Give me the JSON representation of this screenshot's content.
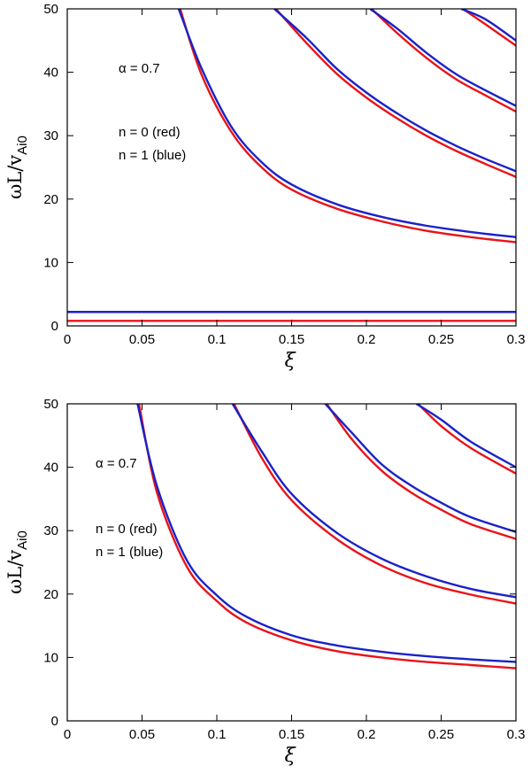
{
  "chart_data": [
    {
      "type": "line",
      "title": "",
      "xlabel": "ξ",
      "ylabel": "ωL/v",
      "ylabel_sub": "Ai0",
      "xlim": [
        0,
        0.3
      ],
      "ylim": [
        0,
        50
      ],
      "xticks": [
        0,
        0.05,
        0.1,
        0.15,
        0.2,
        0.25,
        0.3
      ],
      "xtick_labels": [
        "0",
        "0.05",
        "0.1",
        "0.15",
        "0.2",
        "0.25",
        "0.3"
      ],
      "yticks": [
        0,
        10,
        20,
        30,
        40,
        50
      ],
      "ytick_labels": [
        "0",
        "10",
        "20",
        "30",
        "40",
        "50"
      ],
      "grid": false,
      "annotations": [
        "α = 0.7",
        "n = 0 (red)",
        "n = 1 (blue)"
      ],
      "colors": {
        "n0": "#e8141a",
        "n1": "#1a22c8"
      },
      "series": [
        {
          "name": "n=0 branch 0",
          "n": 0,
          "x": [
            0,
            0.3
          ],
          "y": [
            0.8,
            0.8
          ]
        },
        {
          "name": "n=1 branch 0",
          "n": 1,
          "x": [
            0,
            0.3
          ],
          "y": [
            2.2,
            2.2
          ]
        },
        {
          "name": "n=0 branch 1",
          "n": 0,
          "x": [
            0.0755,
            0.09,
            0.11,
            0.13,
            0.15,
            0.18,
            0.21,
            0.24,
            0.27,
            0.3
          ],
          "y": [
            50,
            39.5,
            30.5,
            25,
            21.5,
            18.5,
            16.5,
            15.0,
            14.0,
            13.2
          ]
        },
        {
          "name": "n=1 branch 1",
          "n": 1,
          "x": [
            0.0745,
            0.09,
            0.11,
            0.13,
            0.15,
            0.18,
            0.21,
            0.24,
            0.27,
            0.3
          ],
          "y": [
            50,
            40.5,
            31.3,
            25.8,
            22.3,
            19.2,
            17.2,
            15.8,
            14.8,
            14.0
          ]
        },
        {
          "name": "n=0 branch 2",
          "n": 0,
          "x": [
            0.1395,
            0.16,
            0.18,
            0.2,
            0.22,
            0.24,
            0.26,
            0.28,
            0.3
          ],
          "y": [
            50,
            44.6,
            39.8,
            36.0,
            32.8,
            30.0,
            27.6,
            25.5,
            23.5
          ]
        },
        {
          "name": "n=1 branch 2",
          "n": 1,
          "x": [
            0.1385,
            0.16,
            0.18,
            0.2,
            0.22,
            0.24,
            0.26,
            0.28,
            0.3
          ],
          "y": [
            50,
            45.4,
            40.6,
            36.8,
            33.6,
            30.8,
            28.4,
            26.3,
            24.4
          ]
        },
        {
          "name": "n=0 branch 3",
          "n": 0,
          "x": [
            0.2035,
            0.22,
            0.24,
            0.26,
            0.28,
            0.3
          ],
          "y": [
            50,
            46.3,
            42.3,
            38.9,
            36.3,
            33.8
          ]
        },
        {
          "name": "n=1 branch 3",
          "n": 1,
          "x": [
            0.2025,
            0.22,
            0.24,
            0.26,
            0.28,
            0.3
          ],
          "y": [
            50,
            47.0,
            43.1,
            39.7,
            37.1,
            34.7
          ]
        },
        {
          "name": "n=0 branch 4",
          "n": 0,
          "x": [
            0.2645,
            0.28,
            0.3
          ],
          "y": [
            50,
            47.5,
            44.2
          ]
        },
        {
          "name": "n=1 branch 4",
          "n": 1,
          "x": [
            0.2635,
            0.28,
            0.3
          ],
          "y": [
            50,
            48.3,
            45.0
          ]
        }
      ]
    },
    {
      "type": "line",
      "title": "",
      "xlabel": "ξ",
      "ylabel": "ωL/v",
      "ylabel_sub": "Ai0",
      "xlim": [
        0,
        0.3
      ],
      "ylim": [
        0,
        50
      ],
      "xticks": [
        0,
        0.05,
        0.1,
        0.15,
        0.2,
        0.25,
        0.3
      ],
      "xtick_labels": [
        "0",
        "0.05",
        "0.1",
        "0.15",
        "0.2",
        "0.25",
        "0.3"
      ],
      "yticks": [
        0,
        10,
        20,
        30,
        40,
        50
      ],
      "ytick_labels": [
        "0",
        "10",
        "20",
        "30",
        "40",
        "50"
      ],
      "grid": false,
      "annotations": [
        "α = 0.7",
        "n = 0 (red)",
        "n = 1 (blue)"
      ],
      "colors": {
        "n0": "#e8141a",
        "n1": "#1a22c8"
      },
      "series": [
        {
          "name": "n=0 branch 1",
          "n": 0,
          "x": [
            0.048,
            0.06,
            0.08,
            0.1,
            0.12,
            0.15,
            0.18,
            0.21,
            0.24,
            0.27,
            0.3
          ],
          "y": [
            50,
            36.0,
            24.3,
            18.9,
            15.5,
            12.7,
            11.0,
            10.0,
            9.3,
            8.8,
            8.3
          ]
        },
        {
          "name": "n=1 branch 1",
          "n": 1,
          "x": [
            0.047,
            0.06,
            0.08,
            0.1,
            0.12,
            0.15,
            0.18,
            0.21,
            0.24,
            0.27,
            0.3
          ],
          "y": [
            50,
            37.0,
            25.3,
            19.8,
            16.4,
            13.5,
            11.9,
            10.9,
            10.2,
            9.7,
            9.3
          ]
        },
        {
          "name": "n=0 branch 2",
          "n": 0,
          "x": [
            0.1115,
            0.13,
            0.15,
            0.18,
            0.21,
            0.24,
            0.27,
            0.3
          ],
          "y": [
            50,
            41.5,
            34.8,
            28.7,
            24.5,
            21.7,
            19.9,
            18.5
          ]
        },
        {
          "name": "n=1 branch 2",
          "n": 1,
          "x": [
            0.1105,
            0.13,
            0.15,
            0.18,
            0.21,
            0.24,
            0.27,
            0.3
          ],
          "y": [
            50,
            42.5,
            35.8,
            29.7,
            25.6,
            22.8,
            20.8,
            19.5
          ]
        },
        {
          "name": "n=0 branch 3",
          "n": 0,
          "x": [
            0.1735,
            0.19,
            0.21,
            0.23,
            0.25,
            0.27,
            0.3
          ],
          "y": [
            50,
            44.5,
            39.5,
            36.0,
            33.3,
            31.0,
            28.7
          ]
        },
        {
          "name": "n=1 branch 3",
          "n": 1,
          "x": [
            0.1725,
            0.19,
            0.21,
            0.23,
            0.25,
            0.27,
            0.3
          ],
          "y": [
            50,
            45.5,
            40.5,
            37.1,
            34.4,
            32.1,
            29.8
          ]
        },
        {
          "name": "n=0 branch 4",
          "n": 0,
          "x": [
            0.2345,
            0.25,
            0.27,
            0.3
          ],
          "y": [
            50,
            46.5,
            43.0,
            39.0
          ]
        },
        {
          "name": "n=1 branch 4",
          "n": 1,
          "x": [
            0.2335,
            0.25,
            0.27,
            0.3
          ],
          "y": [
            50,
            47.5,
            44.0,
            40.0
          ]
        }
      ]
    }
  ]
}
